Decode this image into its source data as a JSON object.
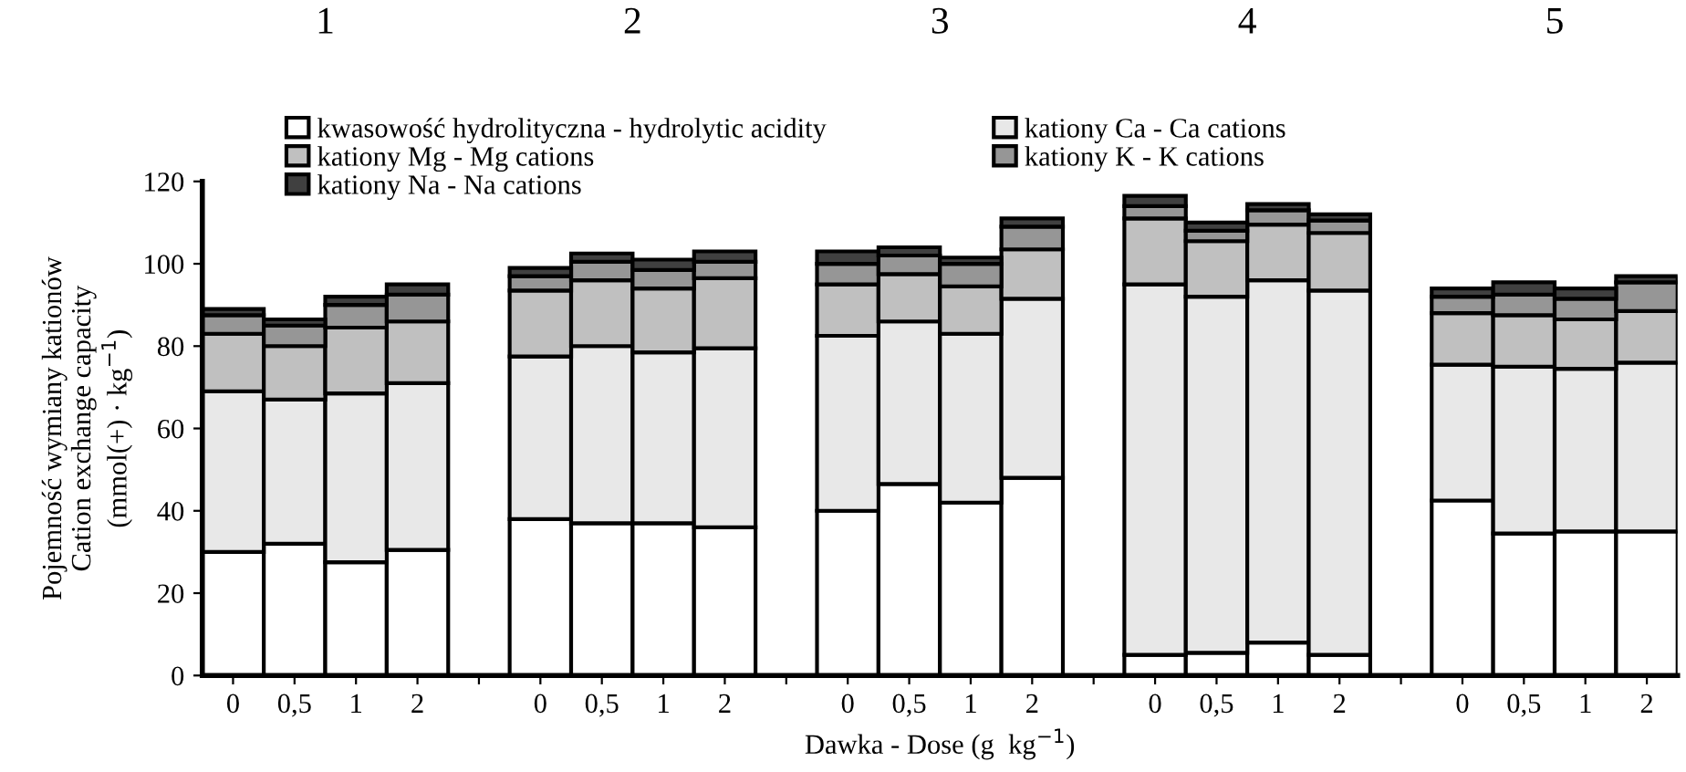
{
  "chart_data": {
    "type": "bar",
    "stacked": true,
    "categories": [
      "0",
      "0,5",
      "1",
      "2",
      null,
      "0",
      "0,5",
      "1",
      "2",
      null,
      "0",
      "0,5",
      "1",
      "2",
      null,
      "0",
      "0,5",
      "1",
      "2",
      null,
      "0",
      "0,5",
      "1",
      "2"
    ],
    "series": [
      {
        "name": "kwasowość hydrolityczna - hydrolytic acidity",
        "color": "#ffffff",
        "values": [
          30,
          32,
          27.5,
          30.5,
          null,
          38,
          37,
          37,
          36,
          null,
          40,
          46.5,
          42,
          48,
          null,
          5,
          5.5,
          8,
          5,
          null,
          42.5,
          34.5,
          35,
          35
        ]
      },
      {
        "name": "kationy Ca - Ca cations",
        "color": "#e8e8e8",
        "values": [
          39,
          35,
          41,
          40.5,
          null,
          39.5,
          43,
          41.5,
          43.5,
          null,
          42.5,
          39.5,
          41,
          43.5,
          null,
          90,
          86.5,
          88,
          88.5,
          null,
          33,
          40.5,
          39.5,
          41
        ]
      },
      {
        "name": "kationy Mg - Mg cations",
        "color": "#c0c0c0",
        "values": [
          14,
          13,
          16,
          15,
          null,
          16,
          16,
          15.5,
          17,
          null,
          12.5,
          11.5,
          11.5,
          12,
          null,
          16,
          13.5,
          13.5,
          14,
          null,
          12.5,
          12.5,
          12,
          12.5
        ]
      },
      {
        "name": "kationy K - K cations",
        "color": "#969696",
        "values": [
          4.5,
          5,
          5.5,
          6.5,
          null,
          3.5,
          4.5,
          4.5,
          4,
          null,
          5,
          4.5,
          5.5,
          5.5,
          null,
          3,
          2.5,
          3.5,
          3,
          null,
          4,
          5,
          5,
          7
        ]
      },
      {
        "name": "kationy Na - Na cations",
        "color": "#404040",
        "values": [
          1.5,
          1.5,
          2,
          2.5,
          null,
          2,
          2,
          2.5,
          2.5,
          null,
          3,
          2,
          1.5,
          2,
          null,
          2.5,
          2,
          1.5,
          1.5,
          null,
          2,
          3,
          2.5,
          1.5
        ]
      }
    ],
    "ylim": [
      0,
      120
    ],
    "yticks": [
      0,
      20,
      40,
      60,
      80,
      100,
      120
    ],
    "ylabel": "Pojemność wymiany kationów\nCation exchange capacity\n(mmol(+) · kg$^{−1}$)",
    "xlabel": "Dawka - Dose (g  kg$^{−1}$)",
    "annotations": [
      "1",
      "2",
      "3",
      "4",
      "5"
    ],
    "legend": "top",
    "grid": false
  }
}
